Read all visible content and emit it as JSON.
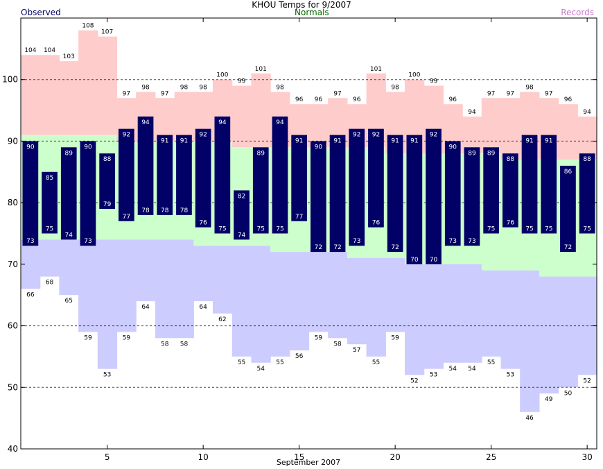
{
  "title": "KHOU Temps for 9/2007",
  "legend": {
    "observed": "Observed",
    "normals": "Normals",
    "records": "Records"
  },
  "colors": {
    "observed": "#000066",
    "normals_text": "#006600",
    "records_text": "#cc77cc",
    "record_high_fill": "#ffcccc",
    "normal_fill": "#ccffcc",
    "record_low_fill": "#ccccff",
    "grid": "#000000"
  },
  "chart_data": {
    "type": "bar",
    "xlabel": "September 2007",
    "ylabel": "",
    "x": [
      1,
      2,
      3,
      4,
      5,
      6,
      7,
      8,
      9,
      10,
      11,
      12,
      13,
      14,
      15,
      16,
      17,
      18,
      19,
      20,
      21,
      22,
      23,
      24,
      25,
      26,
      27,
      28,
      29,
      30
    ],
    "xticks": [
      5,
      10,
      15,
      20,
      25,
      30
    ],
    "ylim": [
      40,
      110
    ],
    "yticks": [
      40,
      50,
      60,
      70,
      80,
      90,
      100
    ],
    "grid": "dashed horizontal at 50, 60, 80, 90, 100",
    "series": [
      {
        "name": "Observed",
        "kind": "high",
        "values": [
          90,
          85,
          89,
          90,
          88,
          92,
          94,
          91,
          91,
          92,
          94,
          82,
          89,
          94,
          91,
          90,
          91,
          92,
          92,
          91,
          91,
          92,
          90,
          89,
          89,
          88,
          91,
          91,
          86,
          88
        ]
      },
      {
        "name": "Observed",
        "kind": "low",
        "values": [
          73,
          75,
          74,
          73,
          79,
          77,
          78,
          78,
          78,
          76,
          75,
          74,
          75,
          75,
          77,
          72,
          72,
          73,
          76,
          72,
          70,
          70,
          73,
          73,
          75,
          76,
          75,
          75,
          72,
          75
        ]
      },
      {
        "name": "Records",
        "kind": "record_high",
        "values": [
          104,
          104,
          103,
          108,
          107,
          97,
          98,
          97,
          98,
          98,
          100,
          99,
          101,
          98,
          96,
          96,
          97,
          96,
          101,
          98,
          100,
          99,
          96,
          94,
          97,
          97,
          98,
          97,
          96,
          94
        ]
      },
      {
        "name": "Records",
        "kind": "record_low",
        "values": [
          66,
          68,
          65,
          59,
          53,
          59,
          64,
          58,
          58,
          64,
          62,
          55,
          54,
          55,
          56,
          59,
          58,
          57,
          55,
          59,
          52,
          53,
          54,
          54,
          55,
          53,
          46,
          49,
          50,
          52
        ]
      },
      {
        "name": "Normals",
        "kind": "normal_high",
        "values": [
          91,
          91,
          91,
          91,
          91,
          90,
          90,
          90,
          90,
          90,
          90,
          89,
          89,
          89,
          89,
          89,
          89,
          89,
          89,
          88,
          88,
          88,
          88,
          88,
          88,
          87,
          87,
          87,
          87,
          87
        ]
      },
      {
        "name": "Normals",
        "kind": "normal_low",
        "values": [
          74,
          74,
          74,
          74,
          74,
          74,
          74,
          74,
          74,
          73,
          73,
          73,
          73,
          72,
          72,
          72,
          72,
          71,
          71,
          71,
          70,
          70,
          70,
          70,
          69,
          69,
          69,
          68,
          68,
          68
        ]
      }
    ]
  }
}
